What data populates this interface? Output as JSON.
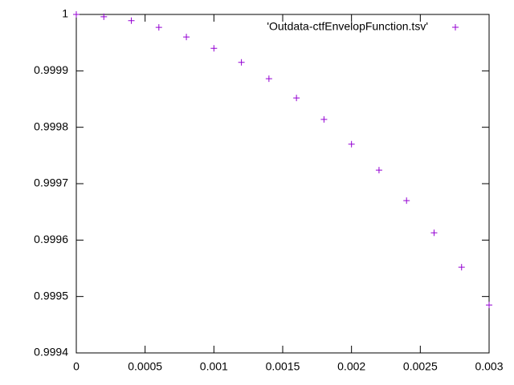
{
  "chart_data": {
    "type": "scatter",
    "marker": "+",
    "series": [
      {
        "name": "'Outdata-ctfEnvelopFunction.tsv'",
        "color": "#9400d3",
        "x": [
          0,
          0.0002,
          0.0004,
          0.0006,
          0.0008,
          0.001,
          0.0012,
          0.0014,
          0.0016,
          0.0018,
          0.002,
          0.0022,
          0.0024,
          0.0026,
          0.0028,
          0.003
        ],
        "values": [
          1,
          0.999996,
          0.999989,
          0.999977,
          0.99996,
          0.99994,
          0.999915,
          0.999886,
          0.999852,
          0.999814,
          0.99977,
          0.999724,
          0.99967,
          0.999613,
          0.999552,
          0.999485
        ]
      }
    ],
    "xlim": [
      0,
      0.003
    ],
    "xticks": [
      0,
      0.0005,
      0.001,
      0.0015,
      0.002,
      0.0025,
      0.003
    ],
    "ylim": [
      0.9994,
      1
    ],
    "yticks": [
      0.9994,
      0.9995,
      0.9996,
      0.9997,
      0.9998,
      0.9999,
      1
    ],
    "legend": "top-right",
    "grid": false
  }
}
